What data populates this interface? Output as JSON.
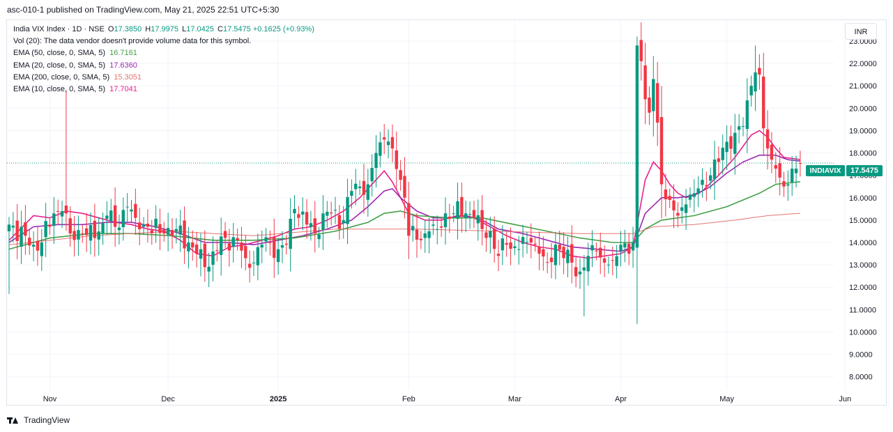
{
  "header": {
    "published": "asc-010-1 published on TradingView.com, May 21, 2025 22:51 UTC+5:30"
  },
  "legend": {
    "symbol": "India VIX Index · 1D · NSE",
    "ohlc": {
      "o_label": "O",
      "o": "17.3850",
      "h_label": "H",
      "h": "17.9975",
      "l_label": "L",
      "l": "17.0425",
      "c_label": "C",
      "c": "17.5475",
      "change": "+0.1625 (+0.93%)"
    },
    "volume_note": "Vol (20): The data vendor doesn't provide volume data for this symbol.",
    "indicators": [
      {
        "label": "EMA (50, close, 0, SMA, 5)",
        "value": "16.7161",
        "color": "#43a047"
      },
      {
        "label": "EMA (20, close, 0, SMA, 5)",
        "value": "17.6360",
        "color": "#9c27b0"
      },
      {
        "label": "EMA (200, close, 0, SMA, 5)",
        "value": "15.3051",
        "color": "#e57373"
      },
      {
        "label": "EMA (10, close, 0, SMA, 5)",
        "value": "17.7041",
        "color": "#e91e8c"
      }
    ]
  },
  "currency": "INR",
  "price_tag": {
    "symbol": "INDIAVIX",
    "value": "17.5475"
  },
  "footer": {
    "brand": "TradingView"
  },
  "colors": {
    "up": "#089981",
    "down": "#f23645",
    "grid": "#f0f3fa",
    "last_line": "#089981"
  },
  "chart_data": {
    "type": "candlestick",
    "title": "India VIX Index · 1D · NSE",
    "ylim": [
      7.4,
      23.9
    ],
    "y_ticks": [
      "8.0000",
      "9.0000",
      "10.0000",
      "11.0000",
      "12.0000",
      "13.0000",
      "14.0000",
      "15.0000",
      "16.0000",
      "17.0000",
      "18.0000",
      "19.0000",
      "20.0000",
      "21.0000",
      "22.0000",
      "23.0000"
    ],
    "x_labels": [
      {
        "label": "Nov",
        "i": 10
      },
      {
        "label": "Dec",
        "i": 39
      },
      {
        "label": "2025",
        "i": 66
      },
      {
        "label": "Feb",
        "i": 98
      },
      {
        "label": "Mar",
        "i": 124
      },
      {
        "label": "Apr",
        "i": 150
      },
      {
        "label": "May",
        "i": 176
      },
      {
        "label": "Jun",
        "i": 205
      }
    ],
    "last_price": 17.5475,
    "anchors": [
      [
        0,
        14.8
      ],
      [
        4,
        14.3
      ],
      [
        6,
        13.9
      ],
      [
        8,
        14.0
      ],
      [
        11,
        15.3
      ],
      [
        13,
        15.4
      ],
      [
        15,
        14.4
      ],
      [
        18,
        14.4
      ],
      [
        21,
        14.2
      ],
      [
        24,
        15.2
      ],
      [
        26,
        14.7
      ],
      [
        29,
        15.6
      ],
      [
        31,
        15.1
      ],
      [
        34,
        14.7
      ],
      [
        38,
        14.4
      ],
      [
        41,
        14.6
      ],
      [
        44,
        14.0
      ],
      [
        46,
        13.5
      ],
      [
        48,
        12.9
      ],
      [
        50,
        13.6
      ],
      [
        53,
        14.2
      ],
      [
        56,
        14.1
      ],
      [
        58,
        13.3
      ],
      [
        60,
        13.1
      ],
      [
        62,
        13.9
      ],
      [
        64,
        14.0
      ],
      [
        66,
        13.7
      ],
      [
        68,
        13.9
      ],
      [
        70,
        15.5
      ],
      [
        73,
        14.8
      ],
      [
        75,
        14.4
      ],
      [
        77,
        15.3
      ],
      [
        79,
        15.3
      ],
      [
        82,
        15.0
      ],
      [
        84,
        16.3
      ],
      [
        86,
        16.5
      ],
      [
        88,
        16.6
      ],
      [
        90,
        18.0
      ],
      [
        92,
        18.6
      ],
      [
        94,
        18.2
      ],
      [
        96,
        16.8
      ],
      [
        97,
        16.0
      ],
      [
        98,
        14.3
      ],
      [
        101,
        14.1
      ],
      [
        103,
        14.5
      ],
      [
        105,
        14.6
      ],
      [
        107,
        15.3
      ],
      [
        109,
        15.3
      ],
      [
        112,
        15.3
      ],
      [
        114,
        15.1
      ],
      [
        116,
        14.6
      ],
      [
        118,
        14.5
      ],
      [
        120,
        13.4
      ],
      [
        122,
        13.9
      ],
      [
        125,
        13.7
      ],
      [
        128,
        14.0
      ],
      [
        130,
        13.5
      ],
      [
        132,
        13.1
      ],
      [
        134,
        13.9
      ],
      [
        136,
        13.3
      ],
      [
        138,
        13.1
      ],
      [
        140,
        12.7
      ],
      [
        142,
        13.4
      ],
      [
        144,
        13.6
      ],
      [
        146,
        13.1
      ],
      [
        148,
        13.2
      ],
      [
        150,
        13.9
      ],
      [
        152,
        13.5
      ],
      [
        153,
        14.0
      ],
      [
        154,
        22.8
      ],
      [
        155,
        22.1
      ],
      [
        156,
        20.4
      ],
      [
        157,
        19.8
      ],
      [
        158,
        21.3
      ],
      [
        160,
        16.6
      ],
      [
        162,
        15.9
      ],
      [
        164,
        15.2
      ],
      [
        166,
        15.7
      ],
      [
        168,
        16.2
      ],
      [
        170,
        16.8
      ],
      [
        172,
        17.0
      ],
      [
        174,
        17.6
      ],
      [
        176,
        18.5
      ],
      [
        178,
        18.9
      ],
      [
        180,
        19.2
      ],
      [
        182,
        21.0
      ],
      [
        183,
        21.6
      ],
      [
        184,
        21.5
      ],
      [
        185,
        19.1
      ],
      [
        186,
        18.2
      ],
      [
        187,
        17.7
      ],
      [
        188,
        17.3
      ],
      [
        189,
        16.9
      ],
      [
        190,
        16.5
      ],
      [
        191,
        16.6
      ],
      [
        192,
        17.3
      ],
      [
        193,
        17.3
      ],
      [
        194,
        17.5475
      ]
    ],
    "series": [
      {
        "name": "EMA 10",
        "color": "#e91e8c",
        "points": [
          [
            0,
            14.1
          ],
          [
            6,
            15.2
          ],
          [
            10,
            15.1
          ],
          [
            14,
            15.4
          ],
          [
            18,
            15.3
          ],
          [
            22,
            15.1
          ],
          [
            26,
            14.9
          ],
          [
            30,
            14.8
          ],
          [
            34,
            14.6
          ],
          [
            38,
            14.5
          ],
          [
            42,
            14.1
          ],
          [
            46,
            13.5
          ],
          [
            50,
            13.4
          ],
          [
            54,
            13.8
          ],
          [
            58,
            13.9
          ],
          [
            62,
            14.1
          ],
          [
            66,
            14.3
          ],
          [
            70,
            14.6
          ],
          [
            74,
            14.7
          ],
          [
            78,
            15.0
          ],
          [
            82,
            15.4
          ],
          [
            86,
            16.0
          ],
          [
            90,
            16.8
          ],
          [
            92,
            17.2
          ],
          [
            94,
            16.7
          ],
          [
            96,
            16.0
          ],
          [
            98,
            15.3
          ],
          [
            102,
            15.0
          ],
          [
            106,
            15.0
          ],
          [
            110,
            15.2
          ],
          [
            114,
            15.1
          ],
          [
            118,
            14.7
          ],
          [
            122,
            14.3
          ],
          [
            126,
            14.0
          ],
          [
            130,
            13.8
          ],
          [
            134,
            13.7
          ],
          [
            138,
            13.4
          ],
          [
            142,
            13.3
          ],
          [
            146,
            13.4
          ],
          [
            150,
            13.5
          ],
          [
            153,
            13.8
          ],
          [
            156,
            16.8
          ],
          [
            158,
            17.6
          ],
          [
            160,
            17.2
          ],
          [
            162,
            16.6
          ],
          [
            164,
            16.2
          ],
          [
            166,
            16.0
          ],
          [
            170,
            16.3
          ],
          [
            174,
            17.0
          ],
          [
            178,
            17.8
          ],
          [
            182,
            18.8
          ],
          [
            184,
            19.0
          ],
          [
            186,
            18.7
          ],
          [
            188,
            18.2
          ],
          [
            190,
            17.8
          ],
          [
            194,
            17.7041
          ]
        ]
      },
      {
        "name": "EMA 20",
        "color": "#9c27b0",
        "points": [
          [
            0,
            14.0
          ],
          [
            6,
            14.7
          ],
          [
            12,
            14.8
          ],
          [
            18,
            14.8
          ],
          [
            24,
            14.9
          ],
          [
            30,
            14.9
          ],
          [
            36,
            14.7
          ],
          [
            42,
            14.4
          ],
          [
            48,
            14.0
          ],
          [
            54,
            14.0
          ],
          [
            60,
            13.9
          ],
          [
            66,
            14.1
          ],
          [
            72,
            14.3
          ],
          [
            78,
            14.6
          ],
          [
            84,
            15.0
          ],
          [
            88,
            15.6
          ],
          [
            92,
            16.3
          ],
          [
            94,
            16.4
          ],
          [
            96,
            16.0
          ],
          [
            100,
            15.4
          ],
          [
            104,
            15.1
          ],
          [
            108,
            15.1
          ],
          [
            112,
            15.2
          ],
          [
            116,
            15.0
          ],
          [
            120,
            14.6
          ],
          [
            126,
            14.4
          ],
          [
            132,
            14.1
          ],
          [
            138,
            13.8
          ],
          [
            144,
            13.7
          ],
          [
            150,
            13.6
          ],
          [
            153,
            13.8
          ],
          [
            156,
            15.3
          ],
          [
            160,
            16.0
          ],
          [
            164,
            16.0
          ],
          [
            168,
            16.1
          ],
          [
            172,
            16.5
          ],
          [
            176,
            17.1
          ],
          [
            180,
            17.6
          ],
          [
            184,
            17.9
          ],
          [
            188,
            17.9
          ],
          [
            191,
            17.7
          ],
          [
            194,
            17.636
          ]
        ]
      },
      {
        "name": "EMA 50",
        "color": "#43a047",
        "points": [
          [
            0,
            13.7
          ],
          [
            10,
            14.2
          ],
          [
            20,
            14.4
          ],
          [
            30,
            14.4
          ],
          [
            40,
            14.3
          ],
          [
            50,
            14.1
          ],
          [
            60,
            14.1
          ],
          [
            70,
            14.2
          ],
          [
            80,
            14.5
          ],
          [
            88,
            14.9
          ],
          [
            92,
            15.3
          ],
          [
            96,
            15.4
          ],
          [
            100,
            15.2
          ],
          [
            108,
            15.1
          ],
          [
            116,
            15.1
          ],
          [
            124,
            14.8
          ],
          [
            132,
            14.5
          ],
          [
            140,
            14.2
          ],
          [
            148,
            14.0
          ],
          [
            153,
            14.0
          ],
          [
            156,
            14.6
          ],
          [
            160,
            15.0
          ],
          [
            168,
            15.2
          ],
          [
            176,
            15.6
          ],
          [
            184,
            16.2
          ],
          [
            188,
            16.6
          ],
          [
            194,
            16.7161
          ]
        ]
      },
      {
        "name": "EMA 200",
        "color": "#e57373",
        "points": [
          [
            0,
            13.9
          ],
          [
            20,
            14.3
          ],
          [
            40,
            14.5
          ],
          [
            60,
            14.3
          ],
          [
            80,
            14.6
          ],
          [
            100,
            14.6
          ],
          [
            120,
            14.5
          ],
          [
            140,
            14.4
          ],
          [
            153,
            14.4
          ],
          [
            158,
            14.7
          ],
          [
            168,
            14.8
          ],
          [
            178,
            15.0
          ],
          [
            186,
            15.2
          ],
          [
            194,
            15.3051
          ]
        ]
      }
    ]
  }
}
